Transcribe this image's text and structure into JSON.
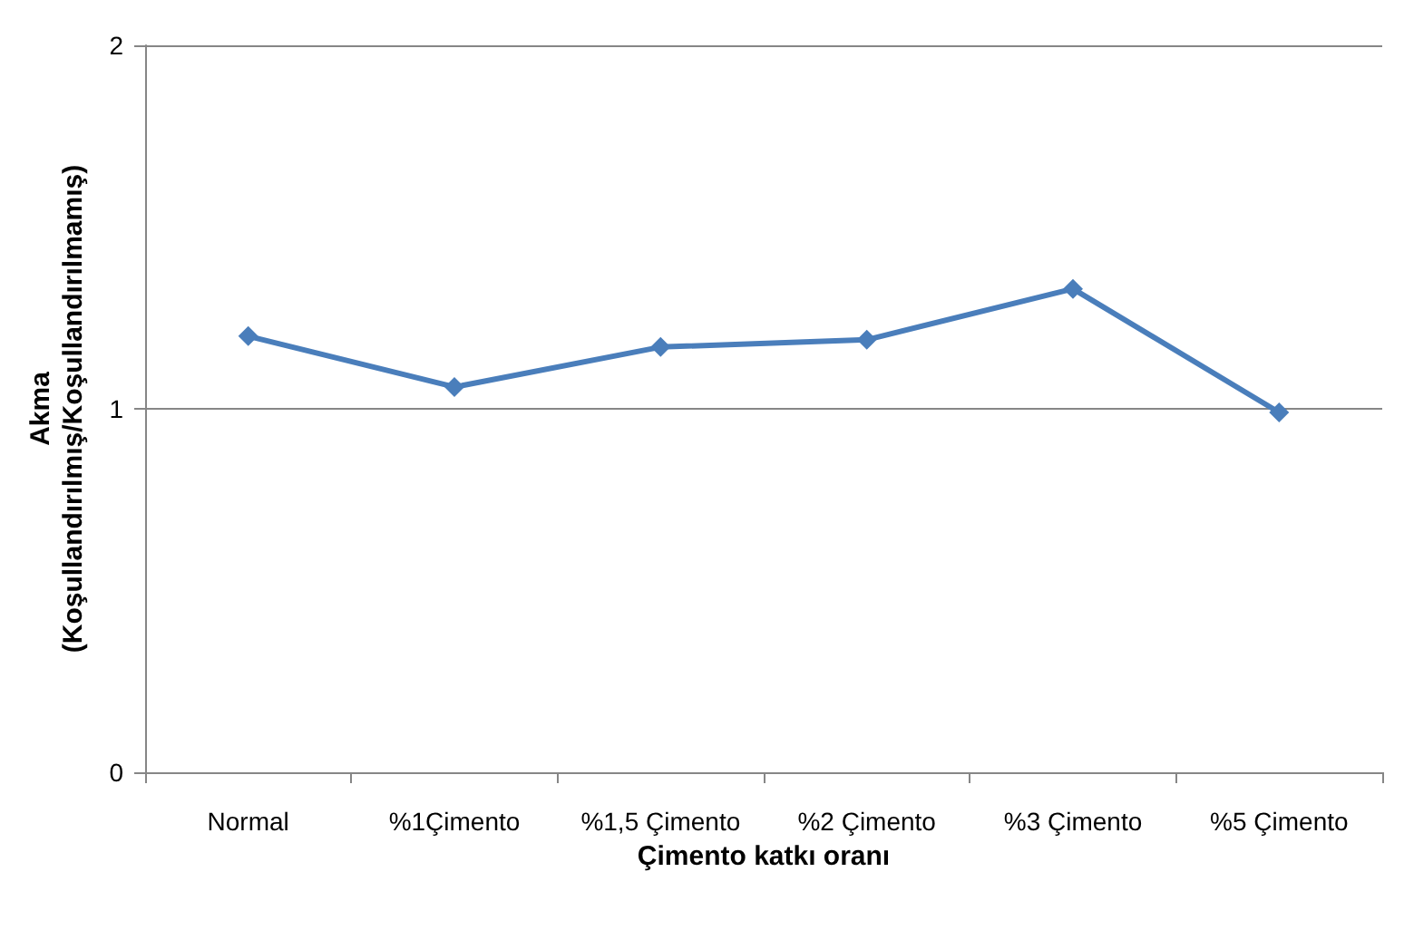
{
  "chart_data": {
    "type": "line",
    "xlabel": "Çimento katkı oranı",
    "ylabel": "Akma\n(Koşullandırılmış/Koşullandırılmamış)",
    "categories": [
      "Normal",
      "%1Çimento",
      "%1,5 Çimento",
      "%2 Çimento",
      "%3 Çimento",
      "%5 Çimento"
    ],
    "series": [
      {
        "color": "#4a7ebb",
        "values": [
          1.2,
          1.06,
          1.17,
          1.19,
          1.33,
          0.99
        ]
      }
    ],
    "ylim": [
      0,
      2
    ],
    "yticks": [
      0,
      1,
      2
    ],
    "grid": "y",
    "marker": "diamond",
    "line_style": "solid"
  }
}
